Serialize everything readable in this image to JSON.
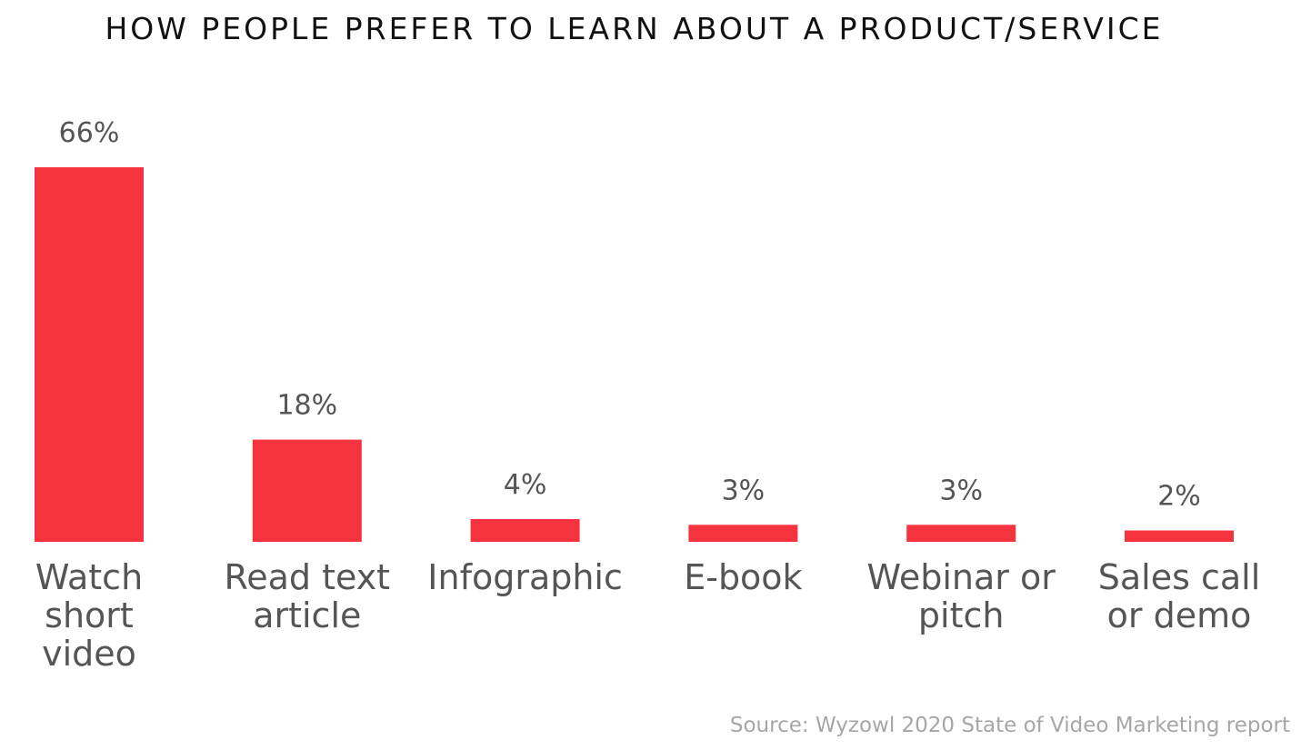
{
  "chart_data": {
    "type": "bar",
    "title": "HOW PEOPLE PREFER TO LEARN ABOUT A PRODUCT/SERVICE",
    "categories": [
      [
        "Watch",
        "short",
        "video"
      ],
      [
        "Read text",
        "article"
      ],
      [
        "Infographic"
      ],
      [
        "E-book"
      ],
      [
        "Webinar or",
        "pitch"
      ],
      [
        "Sales call",
        "or demo"
      ]
    ],
    "values": [
      66,
      18,
      4,
      3,
      3,
      2
    ],
    "value_labels": [
      "66%",
      "18%",
      "4%",
      "3%",
      "3%",
      "2%"
    ],
    "xlabel": "",
    "ylabel": "",
    "ylim": [
      0,
      66
    ],
    "grid": false,
    "bar_color": "#f5333f",
    "source": "Source: Wyzowl 2020 State of Video Marketing report"
  }
}
